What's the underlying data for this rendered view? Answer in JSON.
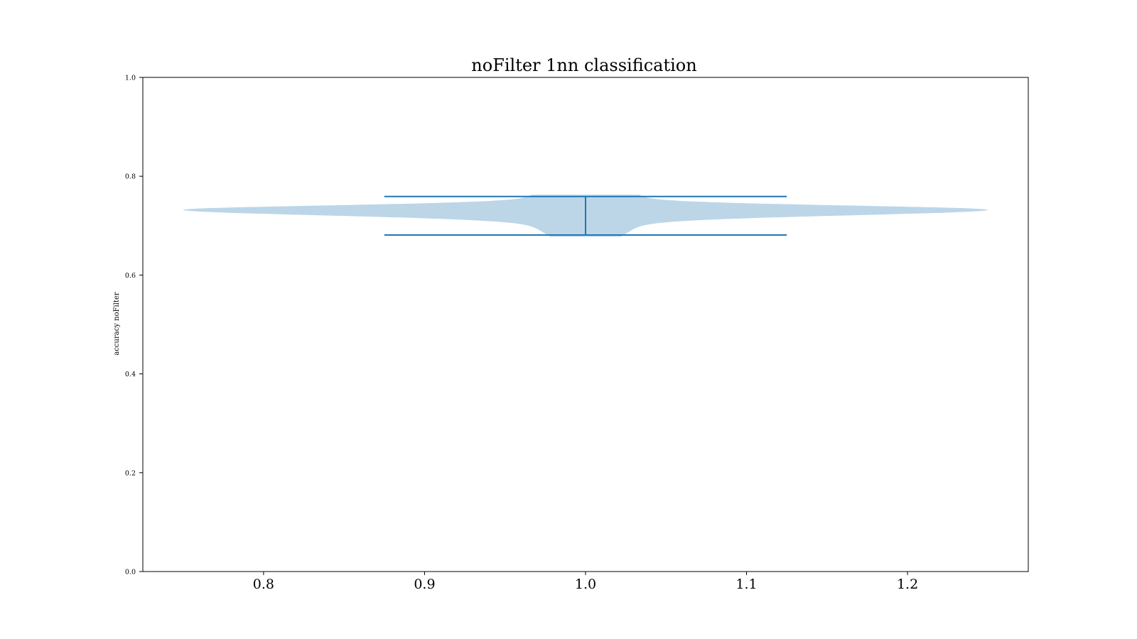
{
  "chart_data": {
    "type": "violin",
    "title": "noFilter 1nn classification",
    "xlabel": "",
    "ylabel": "accuracy noFilter",
    "xlim": [
      0.725,
      1.275
    ],
    "ylim": [
      0.0,
      1.0
    ],
    "x_ticks": [
      "0.8",
      "0.9",
      "1.0",
      "1.1",
      "1.2"
    ],
    "y_ticks": [
      "0.0",
      "0.2",
      "0.4",
      "0.6",
      "0.8",
      "1.0"
    ],
    "grid": false,
    "violin": {
      "position": 1.0,
      "min": 0.681,
      "max": 0.759,
      "density_peak": 0.732,
      "width": 0.5,
      "fill_color": "#bcd6e8",
      "line_color": "#1f77b4"
    }
  }
}
